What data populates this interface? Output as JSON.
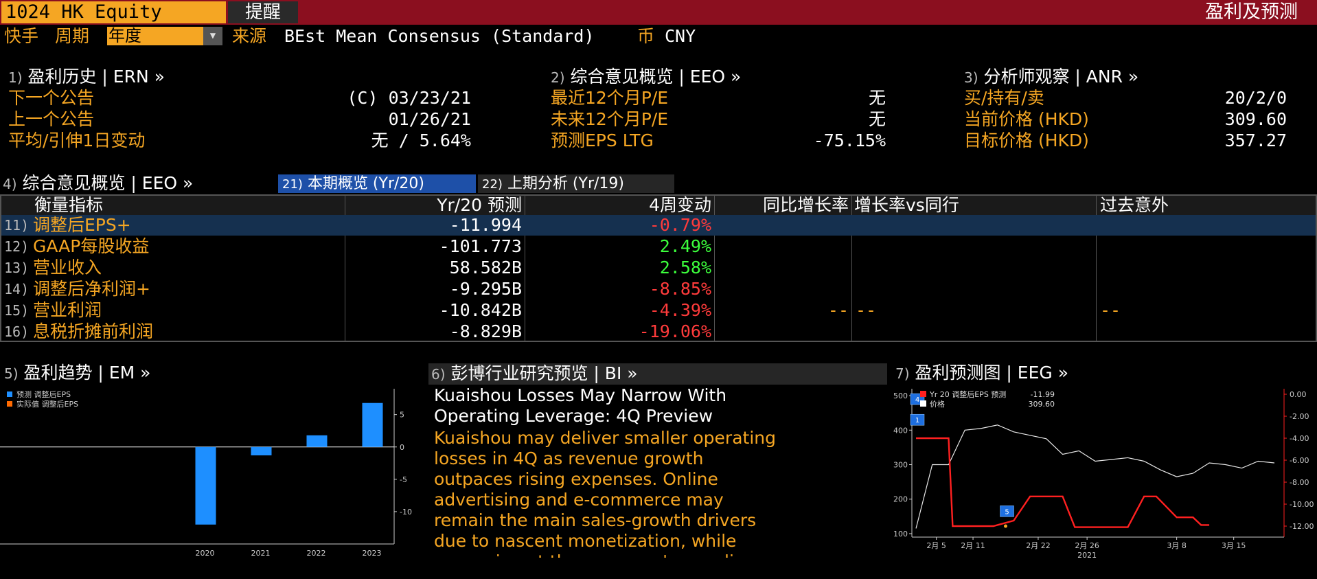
{
  "topbar": {
    "security": "1024 HK Equity",
    "alert": "提醒",
    "title": "盈利及预测"
  },
  "toolbar": {
    "quick": "快手",
    "period_label": "周期",
    "period_value": "年度",
    "source_label": "来源",
    "source_value": "BEst Mean Consensus (Standard)",
    "currency_label": "币",
    "currency_value": "CNY"
  },
  "section1": {
    "num": "1)",
    "title": "盈利历史 | ERN »",
    "rows": [
      {
        "label": "下一个公告",
        "value": "(C) 03/23/21"
      },
      {
        "label": "上一个公告",
        "value": "01/26/21"
      },
      {
        "label": "平均/引伸1日变动",
        "value": "无 / 5.64%"
      }
    ]
  },
  "section2": {
    "num": "2)",
    "title": "综合意见概览 | EEO »",
    "rows": [
      {
        "label": "最近12个月P/E",
        "value": "无"
      },
      {
        "label": "未来12个月P/E",
        "value": "无"
      },
      {
        "label": "预测EPS LTG",
        "value": "-75.15%"
      }
    ]
  },
  "section3": {
    "num": "3)",
    "title": "分析师观察 | ANR »",
    "rows": [
      {
        "label": "买/持有/卖",
        "value": "20/2/0"
      },
      {
        "label": "当前价格 (HKD)",
        "value": "309.60"
      },
      {
        "label": "目标价格 (HKD)",
        "value": "357.27"
      }
    ]
  },
  "section4": {
    "num": "4)",
    "title": "综合意见概览 | EEO »",
    "tabs": [
      {
        "num": "21)",
        "label": "本期概览 (Yr/20)"
      },
      {
        "num": "22)",
        "label": "上期分析 (Yr/19)"
      }
    ],
    "columns": [
      "衡量指标",
      "Yr/20 预测",
      "4周变动",
      "同比增长率",
      "增长率vs同行",
      "过去意外"
    ],
    "rows": [
      {
        "num": "11)",
        "metric": "调整后EPS+",
        "forecast": "-11.994",
        "change": "-0.79%",
        "yoy": "",
        "vs_peers": "",
        "surprise": ""
      },
      {
        "num": "12)",
        "metric": "GAAP每股收益",
        "forecast": "-101.773",
        "change": "2.49%",
        "yoy": "",
        "vs_peers": "",
        "surprise": ""
      },
      {
        "num": "13)",
        "metric": "营业收入",
        "forecast": "58.582B",
        "change": "2.58%",
        "yoy": "",
        "vs_peers": "",
        "surprise": ""
      },
      {
        "num": "14)",
        "metric": "调整后净利润+",
        "forecast": "-9.295B",
        "change": "-8.85%",
        "yoy": "",
        "vs_peers": "",
        "surprise": ""
      },
      {
        "num": "15)",
        "metric": "营业利润",
        "forecast": "-10.842B",
        "change": "-4.39%",
        "yoy": "--",
        "vs_peers": "--",
        "surprise": "--"
      },
      {
        "num": "16)",
        "metric": "息税折摊前利润",
        "forecast": "-8.829B",
        "change": "-19.06%",
        "yoy": "",
        "vs_peers": "",
        "surprise": ""
      }
    ]
  },
  "section5": {
    "num": "5)",
    "title": "盈利趋势 | EM »"
  },
  "section6": {
    "num": "6)",
    "title": "彭博行业研究预览 | BI »",
    "headline": [
      "Kuaishou Losses May Narrow With",
      "Operating Leverage: 4Q Preview"
    ],
    "body": [
      "Kuaishou may deliver smaller operating",
      "losses in 4Q as revenue growth",
      "outpaces rising expenses. Online",
      "advertising and e-commerce may",
      "remain the main sales-growth drivers",
      "due to nascent monetization, while",
      "expansion at the company's core live"
    ]
  },
  "section7": {
    "num": "7)",
    "title": "盈利预测图 | EEG »"
  },
  "colors": {
    "orange": "#f5a623",
    "topbar": "#8b0f1f",
    "bar_blue": "#1e8fff",
    "series_red": "#ff2020",
    "positive": "#3cff3c",
    "negative": "#ff3b3b"
  },
  "chart_data": [
    {
      "type": "bar",
      "categories": [
        "2020",
        "2021",
        "2022",
        "2023"
      ],
      "series": [
        {
          "name": "预测 调整后EPS",
          "values": [
            -12.0,
            -1.3,
            1.8,
            6.8
          ]
        },
        {
          "name": "实际值 调整后EPS",
          "values": [
            null,
            null,
            null,
            null
          ]
        }
      ],
      "yticks": [
        5,
        0,
        -5,
        -10
      ],
      "ylim": [
        -15,
        9
      ],
      "legend": "top-left"
    },
    {
      "type": "line",
      "x_ticks": [
        "2月 5",
        "2月 11",
        "2月 22",
        "2月 26",
        "3月 8",
        "3月 15"
      ],
      "x_year": "2021",
      "left_yticks": [
        500,
        400,
        300,
        200,
        100
      ],
      "right_yticks": [
        "0.00",
        "-2.00",
        "-4.00",
        "-6.00",
        "-8.00",
        "-10.00",
        "-12.00"
      ],
      "left_ylim": [
        90,
        520
      ],
      "right_ylim": [
        -13,
        0.5
      ],
      "legend": [
        {
          "name": "Yr 20 调整后EPS 预测",
          "value": "-11.99"
        },
        {
          "name": "价格",
          "value": "309.60"
        }
      ],
      "series": [
        {
          "name": "价格",
          "axis": "left",
          "x": [
            0,
            2,
            4,
            6,
            8,
            10,
            12,
            14,
            16,
            18,
            20,
            22,
            24,
            26,
            28,
            30,
            32,
            34,
            36,
            38,
            40,
            42,
            44
          ],
          "values": [
            115,
            300,
            300,
            400,
            405,
            415,
            395,
            385,
            375,
            330,
            340,
            310,
            315,
            320,
            310,
            285,
            265,
            275,
            305,
            300,
            290,
            310,
            305
          ]
        },
        {
          "name": "Yr 20 调整后EPS 预测",
          "axis": "right",
          "x": [
            0,
            2,
            4,
            4.5,
            6,
            8,
            9.5,
            12,
            14,
            16,
            18,
            19.5,
            22,
            24,
            26,
            28,
            29.5,
            32,
            34,
            35,
            36
          ],
          "values": [
            -4.0,
            -4.0,
            -4.0,
            -12.0,
            -12.0,
            -12.0,
            -12.0,
            -11.5,
            -9.3,
            -9.3,
            -9.3,
            -12.1,
            -12.1,
            -12.1,
            -12.1,
            -9.3,
            -9.3,
            -11.2,
            -11.2,
            -11.9,
            -11.9
          ]
        }
      ],
      "markers": [
        {
          "label": "4"
        },
        {
          "label": "1"
        },
        {
          "label": "5"
        }
      ]
    }
  ]
}
